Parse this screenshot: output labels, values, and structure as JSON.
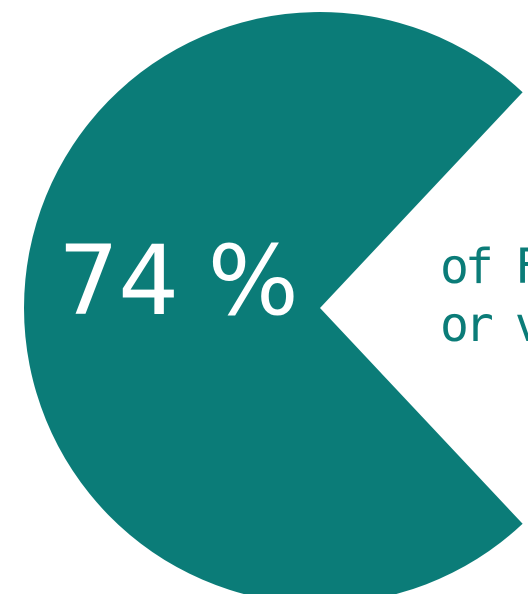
{
  "chart_data": {
    "type": "pie",
    "slices": [
      {
        "label": "74 %",
        "value": 74,
        "color": "#0b7c78"
      },
      {
        "value": 26,
        "color": "#ffffff"
      }
    ],
    "display_value": "74 %",
    "caption_lines": [
      "of Fr",
      "or ve"
    ]
  },
  "colors": {
    "accent": "#0b7c78",
    "background": "#ffffff",
    "value_text": "#ffffff"
  }
}
